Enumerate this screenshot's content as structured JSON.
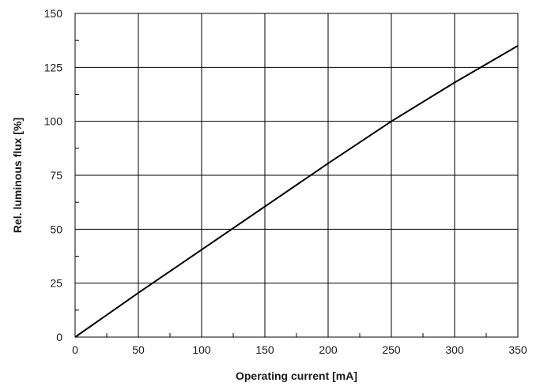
{
  "chart_data": {
    "type": "line",
    "title": "",
    "xlabel": "Operating current [mA]",
    "ylabel": "Rel. luminous flux [%]",
    "xlim": [
      0,
      350
    ],
    "ylim": [
      0,
      150
    ],
    "xticks": [
      "0",
      "50",
      "100",
      "150",
      "200",
      "250",
      "300",
      "350"
    ],
    "yticks": [
      "0",
      "25",
      "50",
      "75",
      "100",
      "125",
      "150"
    ],
    "grid": true,
    "line_color": "#000000",
    "grid_color": "#000000",
    "series": [
      {
        "x": [
          0,
          50,
          100,
          150,
          200,
          250,
          300,
          350
        ],
        "values": [
          0,
          20.5,
          40.5,
          60.5,
          80.5,
          100,
          118,
          135
        ]
      }
    ]
  }
}
